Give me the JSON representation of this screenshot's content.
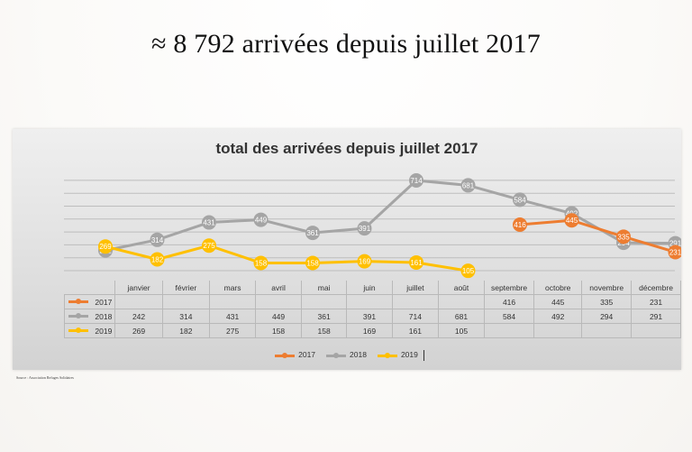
{
  "slide": {
    "title": "≈ 8 792 arrivées depuis juillet 2017",
    "source": "Source : Association Refuges Solidaires"
  },
  "chart_data": {
    "type": "line",
    "title": "total des arrivées depuis juillet 2017",
    "categories": [
      "janvier",
      "février",
      "mars",
      "avril",
      "mai",
      "juin",
      "juillet",
      "août",
      "septembre",
      "octobre",
      "novembre",
      "décembre"
    ],
    "series": [
      {
        "name": "2017",
        "color": "#ed7d31",
        "values": [
          null,
          null,
          null,
          null,
          null,
          null,
          null,
          null,
          416,
          445,
          335,
          231
        ]
      },
      {
        "name": "2018",
        "color": "#a5a5a5",
        "values": [
          242,
          314,
          431,
          449,
          361,
          391,
          714,
          681,
          584,
          492,
          294,
          291
        ]
      },
      {
        "name": "2019",
        "color": "#ffc000",
        "values": [
          269,
          182,
          275,
          158,
          158,
          169,
          161,
          105,
          null,
          null,
          null,
          null
        ]
      }
    ],
    "legend_position": "bottom",
    "grid": true
  }
}
